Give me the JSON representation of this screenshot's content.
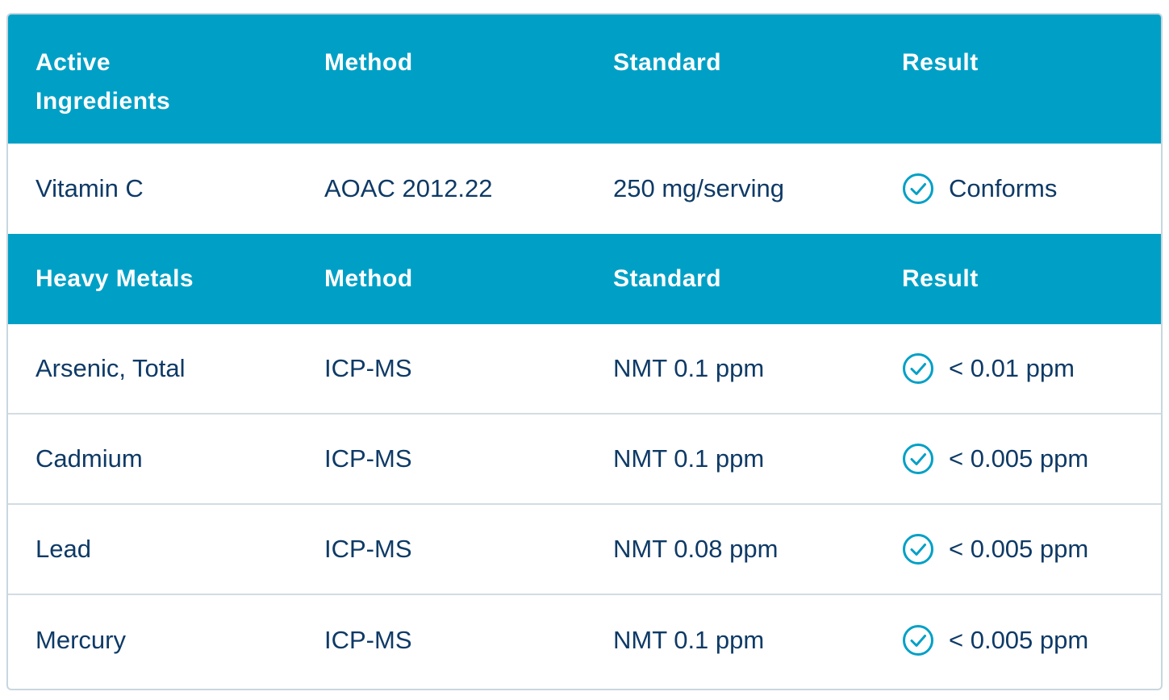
{
  "section1": {
    "headers": [
      "Active\nIngredients",
      "Method",
      "Standard",
      "Result"
    ],
    "header_lines": [
      "Active",
      "Ingredients"
    ],
    "rows": [
      {
        "name": "Vitamin C",
        "method": "AOAC 2012.22",
        "standard": "250 mg/serving",
        "result": "Conforms",
        "icon": "check-circle-icon"
      }
    ]
  },
  "section2": {
    "headers": [
      "Heavy Metals",
      "Method",
      "Standard",
      "Result"
    ],
    "rows": [
      {
        "name": "Arsenic, Total",
        "method": "ICP-MS",
        "standard": "NMT 0.1 ppm",
        "result": "< 0.01 ppm",
        "icon": "check-circle-icon"
      },
      {
        "name": "Cadmium",
        "method": "ICP-MS",
        "standard": "NMT 0.1 ppm",
        "result": "< 0.005 ppm",
        "icon": "check-circle-icon"
      },
      {
        "name": "Lead",
        "method": "ICP-MS",
        "standard": "NMT 0.08 ppm",
        "result": "< 0.005 ppm",
        "icon": "check-circle-icon"
      },
      {
        "name": "Mercury",
        "method": "ICP-MS",
        "standard": "NMT 0.1 ppm",
        "result": "< 0.005 ppm",
        "icon": "check-circle-icon"
      }
    ]
  },
  "colors": {
    "header_bg": "#00a0c6",
    "header_text": "#ffffff",
    "body_text": "#0e3a66",
    "check_icon": "#00a0c6",
    "row_border": "#d2dce3"
  }
}
